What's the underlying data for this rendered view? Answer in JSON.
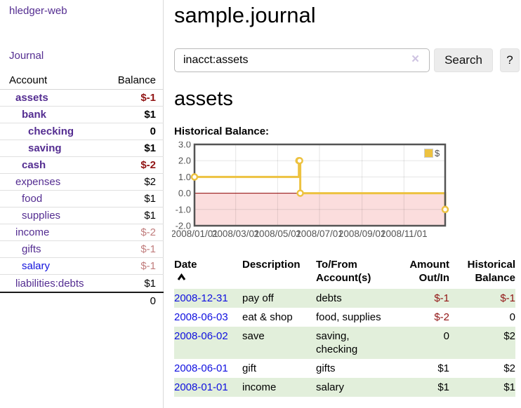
{
  "colors": {
    "link_purple": "#542d91",
    "link_blue": "#1313dd",
    "negative_red": "#911414",
    "negative_faded": "#c17d7d",
    "row_stripe_green": "#e2efdb",
    "chart_line_gold": "#edc240",
    "chart_negative_fill": "#fbdddd",
    "chart_zero_line": "#8b0000",
    "chart_border": "#545454"
  },
  "sidebar": {
    "brand": "hledger-web",
    "nav_journal": "Journal",
    "accounts_table": {
      "header_account": "Account",
      "header_balance": "Balance",
      "rows": [
        {
          "label": "assets",
          "level": 1,
          "bold": true,
          "link": "purple",
          "balance": "$-1",
          "balance_style": "negative"
        },
        {
          "label": "bank",
          "level": 2,
          "bold": true,
          "link": "purple",
          "balance": "$1",
          "balance_style": "normal"
        },
        {
          "label": "checking",
          "level": 3,
          "bold": true,
          "link": "purple",
          "balance": "0",
          "balance_style": "normal"
        },
        {
          "label": "saving",
          "level": 3,
          "bold": true,
          "link": "purple",
          "balance": "$1",
          "balance_style": "normal"
        },
        {
          "label": "cash",
          "level": 2,
          "bold": true,
          "link": "purple",
          "balance": "$-2",
          "balance_style": "negative"
        },
        {
          "label": "expenses",
          "level": 1,
          "bold": false,
          "link": "purple",
          "balance": "$2",
          "balance_style": "normal"
        },
        {
          "label": "food",
          "level": 2,
          "bold": false,
          "link": "purple",
          "balance": "$1",
          "balance_style": "normal"
        },
        {
          "label": "supplies",
          "level": 2,
          "bold": false,
          "link": "purple",
          "balance": "$1",
          "balance_style": "normal"
        },
        {
          "label": "income",
          "level": 1,
          "bold": false,
          "link": "purple",
          "balance": "$-2",
          "balance_style": "negative_faded"
        },
        {
          "label": "gifts",
          "level": 2,
          "bold": false,
          "link": "purple",
          "balance": "$-1",
          "balance_style": "negative_faded"
        },
        {
          "label": "salary",
          "level": 2,
          "bold": false,
          "link": "blue",
          "balance": "$-1",
          "balance_style": "negative_faded"
        },
        {
          "label": "liabilities:debts",
          "level": 1,
          "bold": false,
          "link": "purple",
          "balance": "$1",
          "balance_style": "normal"
        }
      ],
      "total": "0"
    }
  },
  "header": {
    "title": "sample.journal"
  },
  "search": {
    "value": "inacct:assets",
    "clear_icon": "×",
    "button_label": "Search",
    "help_label": "?"
  },
  "account_page": {
    "heading": "assets",
    "chart_caption": "Historical Balance:"
  },
  "chart_data": {
    "type": "line",
    "style": "step",
    "series": [
      {
        "name": "$"
      }
    ],
    "points": [
      {
        "date": "2008-01-01",
        "value": 1
      },
      {
        "date": "2008-06-01",
        "value": 2
      },
      {
        "date": "2008-06-02",
        "value": 2
      },
      {
        "date": "2008-06-03",
        "value": 0
      },
      {
        "date": "2008-12-31",
        "value": -1
      }
    ],
    "xrange": [
      "2008-01-01",
      "2008-12-31"
    ],
    "ylim": [
      -2,
      3
    ],
    "yticks": [
      {
        "value": 3,
        "label": "3.0"
      },
      {
        "value": 2,
        "label": "2.0"
      },
      {
        "value": 1,
        "label": "1.0"
      },
      {
        "value": 0,
        "label": "0.0"
      },
      {
        "value": -1,
        "label": "-1.0"
      },
      {
        "value": -2,
        "label": "-2.0"
      }
    ],
    "xticks": [
      {
        "date": "2008-01-01",
        "label": "2008/01/01"
      },
      {
        "date": "2008-03-01",
        "label": "2008/03/01"
      },
      {
        "date": "2008-05-01",
        "label": "2008/05/01"
      },
      {
        "date": "2008-07-01",
        "label": "2008/07/01"
      },
      {
        "date": "2008-09-01",
        "label": "2008/09/01"
      },
      {
        "date": "2008-11-01",
        "label": "2008/11/01"
      }
    ],
    "grid": true,
    "legend_position": "top-right",
    "negative_region_shaded": true
  },
  "register": {
    "headers": {
      "date": "Date",
      "description": "Description",
      "tofrom_line1": "To/From",
      "tofrom_line2": "Account(s)",
      "amount_line1": "Amount",
      "amount_line2": "Out/In",
      "balance_line1": "Historical",
      "balance_line2": "Balance"
    },
    "rows": [
      {
        "date": "2008-12-31",
        "description": "pay off",
        "accounts": "debts",
        "amount": "$-1",
        "amount_negative": true,
        "balance": "$-1",
        "balance_negative": true,
        "striped": true
      },
      {
        "date": "2008-06-03",
        "description": "eat & shop",
        "accounts": "food, supplies",
        "amount": "$-2",
        "amount_negative": true,
        "balance": "0",
        "balance_negative": false,
        "striped": false
      },
      {
        "date": "2008-06-02",
        "description": "save",
        "accounts": "saving, checking",
        "amount": "0",
        "amount_negative": false,
        "balance": "$2",
        "balance_negative": false,
        "striped": true
      },
      {
        "date": "2008-06-01",
        "description": "gift",
        "accounts": "gifts",
        "amount": "$1",
        "amount_negative": false,
        "balance": "$2",
        "balance_negative": false,
        "striped": false
      },
      {
        "date": "2008-01-01",
        "description": "income",
        "accounts": "salary",
        "amount": "$1",
        "amount_negative": false,
        "balance": "$1",
        "balance_negative": false,
        "striped": true
      }
    ]
  }
}
